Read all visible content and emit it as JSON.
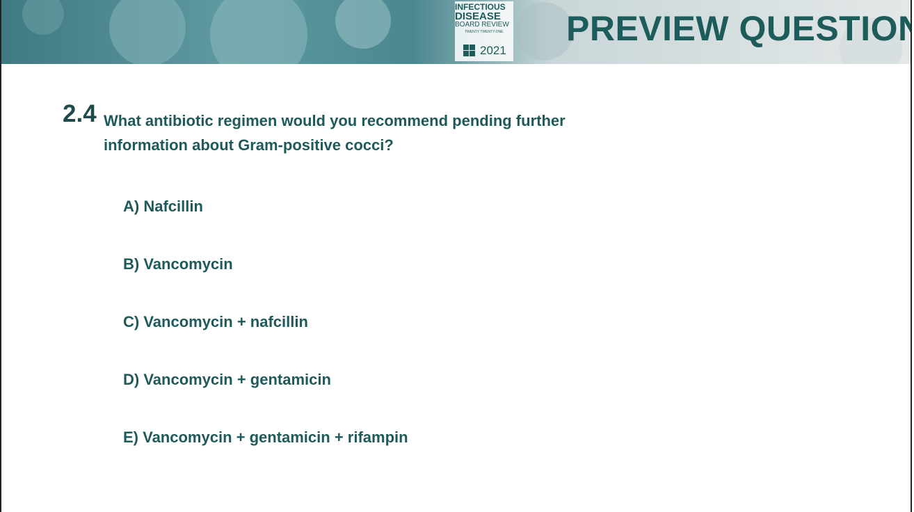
{
  "header": {
    "logo": {
      "line1": "INFECTIOUS",
      "line2": "DISEASE",
      "line3": "BOARD REVIEW",
      "line4": "TWENTY TWENTY-ONE",
      "year": "2021"
    },
    "title": "PREVIEW QUESTION"
  },
  "question": {
    "number": "2.4",
    "text": "What antibiotic regimen would you recommend pending further information about Gram-positive cocci?",
    "options": [
      "A) Nafcillin",
      "B) Vancomycin",
      "C) Vancomycin + nafcillin",
      "D) Vancomycin + gentamicin",
      "E) Vancomycin + gentamicin + rifampin"
    ]
  }
}
